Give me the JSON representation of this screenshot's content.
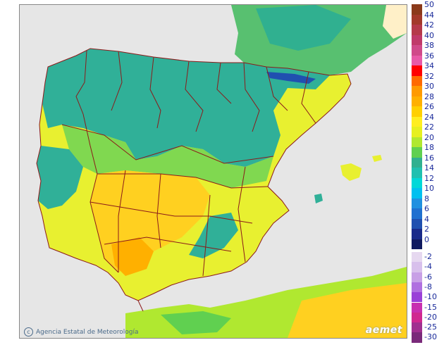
{
  "credit_text": "Agencia Estatal de Meteorología",
  "credit_icon": "copyright-icon",
  "logo_text": "aemet",
  "legend": {
    "positive": [
      {
        "label": "50",
        "color": "#8b3a1a"
      },
      {
        "label": "44",
        "color": "#a33a2a"
      },
      {
        "label": "42",
        "color": "#b53a4a"
      },
      {
        "label": "40",
        "color": "#c03a6a"
      },
      {
        "label": "38",
        "color": "#d04a8a"
      },
      {
        "label": "36",
        "color": "#e85aa8"
      },
      {
        "label": "34",
        "color": "#ff0000"
      },
      {
        "label": "32",
        "color": "#ff6a00"
      },
      {
        "label": "30",
        "color": "#ff9a00"
      },
      {
        "label": "28",
        "color": "#ffb000"
      },
      {
        "label": "26",
        "color": "#ffd000"
      },
      {
        "label": "24",
        "color": "#ffee20"
      },
      {
        "label": "22",
        "color": "#e6f020"
      },
      {
        "label": "20",
        "color": "#b0e830"
      },
      {
        "label": "18",
        "color": "#60d050"
      },
      {
        "label": "16",
        "color": "#30b090"
      },
      {
        "label": "14",
        "color": "#20c0b0"
      },
      {
        "label": "12",
        "color": "#00d8d8"
      },
      {
        "label": "10",
        "color": "#00c0f0"
      },
      {
        "label": "8",
        "color": "#2090e0"
      },
      {
        "label": "6",
        "color": "#2070d0"
      },
      {
        "label": "4",
        "color": "#2050b0"
      },
      {
        "label": "2",
        "color": "#1a2a8a"
      },
      {
        "label": "0",
        "color": "#101a60"
      }
    ],
    "negative": [
      {
        "label": "-2",
        "color": "#e6d8f0"
      },
      {
        "label": "-4",
        "color": "#d8c0ec"
      },
      {
        "label": "-6",
        "color": "#c8a0e6"
      },
      {
        "label": "-8",
        "color": "#b070e0"
      },
      {
        "label": "-10",
        "color": "#9a40d8"
      },
      {
        "label": "-15",
        "color": "#c830b0"
      },
      {
        "label": "-20",
        "color": "#d02890"
      },
      {
        "label": "-25",
        "color": "#a03090"
      },
      {
        "label": "-30",
        "color": "#7a2a7a"
      }
    ]
  }
}
